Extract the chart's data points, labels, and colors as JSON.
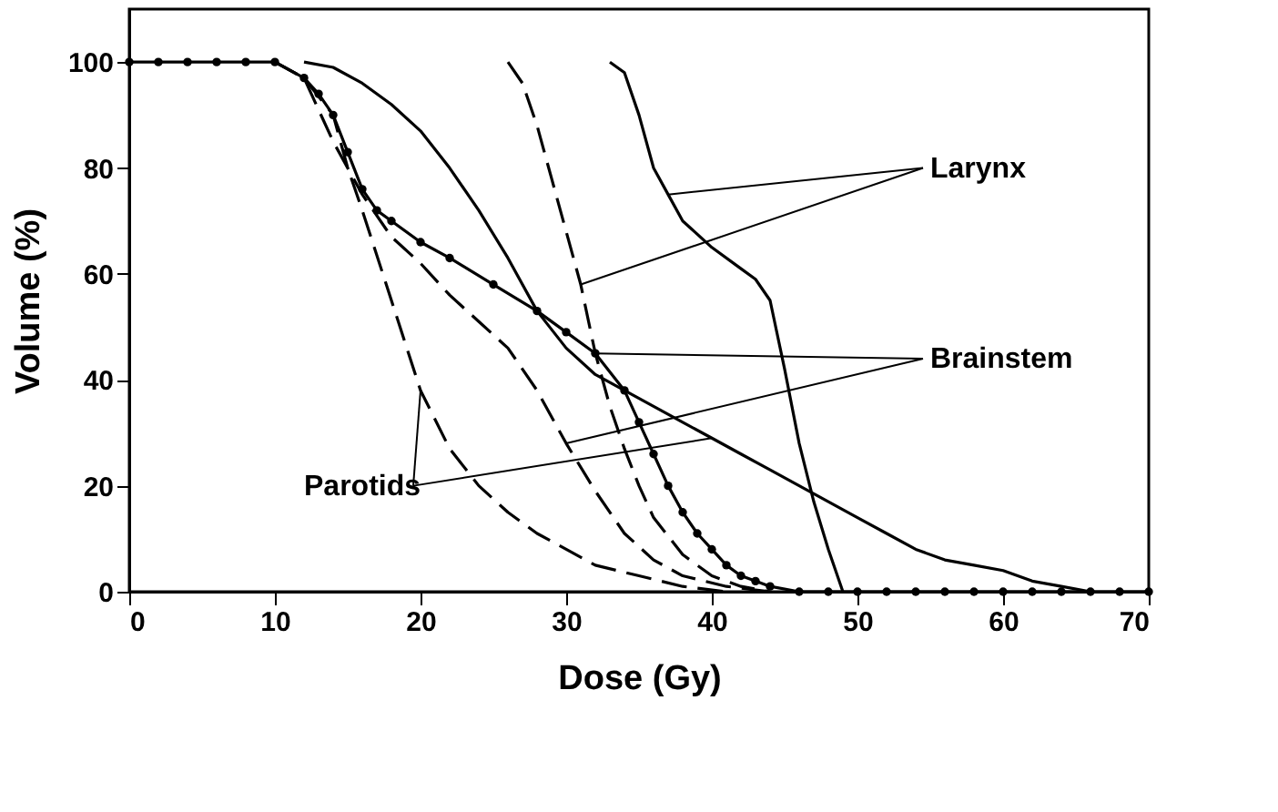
{
  "chart_data": {
    "type": "line",
    "xlabel": "Dose (Gy)",
    "ylabel": "Volume (%)",
    "xlim": [
      0,
      70
    ],
    "ylim": [
      0,
      110
    ],
    "xticks": [
      0,
      10,
      20,
      30,
      40,
      50,
      60,
      70
    ],
    "yticks": [
      0,
      20,
      40,
      60,
      80,
      100
    ],
    "grid": false,
    "annotations": [
      {
        "text": "Larynx",
        "x": 37,
        "y": 75
      },
      {
        "text": "Brainstem",
        "x": 32,
        "y": 45
      },
      {
        "text": "Parotids",
        "x": 40,
        "y": 29
      }
    ],
    "series": [
      {
        "color": "#000000",
        "line_style": "solid",
        "marker": "none",
        "x": [
          33,
          34,
          35,
          36,
          37,
          38,
          40,
          42,
          43,
          44,
          45,
          46,
          47,
          48,
          49
        ],
        "values": [
          100,
          98,
          90,
          80,
          75,
          70,
          65,
          61,
          59,
          55,
          42,
          28,
          17,
          8,
          0
        ]
      },
      {
        "color": "#000000",
        "line_style": "dashed",
        "marker": "none",
        "x": [
          26,
          27,
          28,
          29,
          30,
          31,
          32,
          33,
          34,
          35,
          36,
          38,
          40,
          42,
          44
        ],
        "values": [
          100,
          96,
          88,
          78,
          68,
          58,
          45,
          35,
          27,
          20,
          14,
          7,
          3,
          1,
          0
        ]
      },
      {
        "color": "#000000",
        "line_style": "solid",
        "marker": "circle",
        "x": [
          0,
          2,
          4,
          6,
          8,
          10,
          12,
          13,
          14,
          15,
          16,
          17,
          18,
          20,
          22,
          25,
          28,
          30,
          32,
          34,
          35,
          36,
          37,
          38,
          39,
          40,
          41,
          42,
          43,
          44,
          46,
          48,
          50,
          52,
          54,
          56,
          58,
          60,
          62,
          64,
          66,
          68,
          70
        ],
        "values": [
          100,
          100,
          100,
          100,
          100,
          100,
          97,
          94,
          90,
          83,
          76,
          72,
          70,
          66,
          63,
          58,
          53,
          49,
          45,
          38,
          32,
          26,
          20,
          15,
          11,
          8,
          5,
          3,
          2,
          1,
          0,
          0,
          0,
          0,
          0,
          0,
          0,
          0,
          0,
          0,
          0,
          0,
          0
        ]
      },
      {
        "color": "#000000",
        "line_style": "dashed",
        "marker": "none",
        "x": [
          10,
          12,
          14,
          16,
          18,
          20,
          22,
          24,
          26,
          28,
          30,
          32,
          34,
          36,
          38,
          41,
          44
        ],
        "values": [
          100,
          97,
          85,
          75,
          67,
          62,
          56,
          51,
          46,
          38,
          28,
          19,
          11,
          6,
          3,
          1,
          0
        ]
      },
      {
        "color": "#000000",
        "line_style": "solid",
        "marker": "none",
        "x": [
          12,
          14,
          16,
          18,
          20,
          22,
          24,
          26,
          28,
          30,
          32,
          34,
          36,
          38,
          40,
          42,
          44,
          46,
          48,
          50,
          52,
          54,
          56,
          58,
          60,
          62,
          64,
          66
        ],
        "values": [
          100,
          99,
          96,
          92,
          87,
          80,
          72,
          63,
          53,
          46,
          41,
          38,
          35,
          32,
          29,
          26,
          23,
          20,
          17,
          14,
          11,
          8,
          6,
          5,
          4,
          2,
          1,
          0
        ]
      },
      {
        "color": "#000000",
        "line_style": "dashed",
        "marker": "none",
        "x": [
          10,
          12,
          14,
          15,
          16,
          18,
          20,
          22,
          24,
          26,
          28,
          30,
          32,
          35,
          38,
          41
        ],
        "values": [
          100,
          97,
          90,
          80,
          72,
          55,
          38,
          27,
          20,
          15,
          11,
          8,
          5,
          3,
          1,
          0
        ]
      }
    ]
  }
}
